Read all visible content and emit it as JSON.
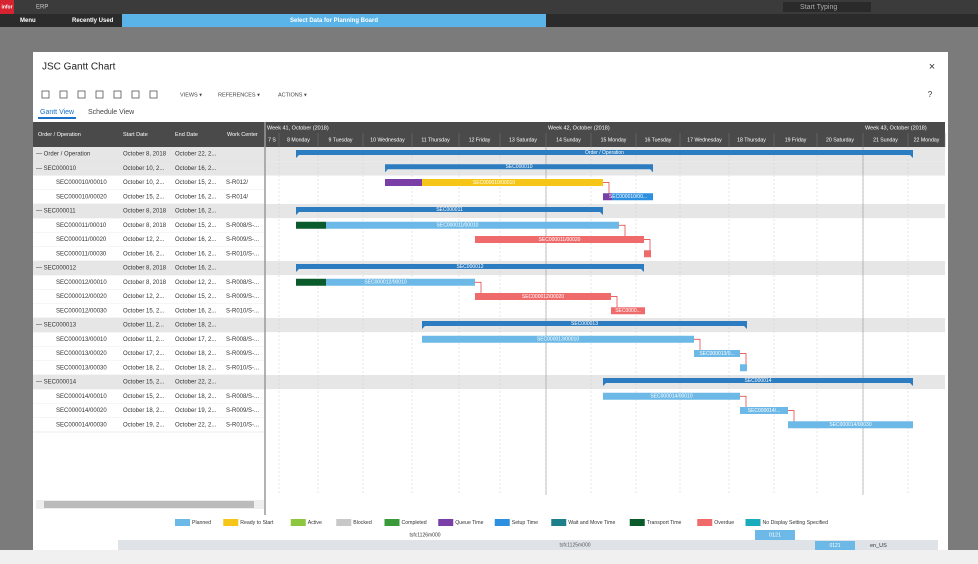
{
  "top_bar": {
    "logo": "infor",
    "app": "ERP",
    "search_placeholder": "Start Typing"
  },
  "menu_bar": {
    "menu": "Menu",
    "recently_used": "Recently Used",
    "banner": "Select Data for Planning Board"
  },
  "dialog": {
    "title": "JSC Gantt Chart",
    "close": "×",
    "help": "?",
    "toolbar": [
      "VIEWS ▾",
      "REFERENCES ▾",
      "ACTIONS ▾"
    ],
    "tabs": [
      "Gantt View",
      "Schedule View"
    ],
    "columns": [
      "Order / Operation",
      "Start Date",
      "End Date",
      "Work Center"
    ],
    "weeks": [
      "Week 41, October (2018)",
      "Week 42, October (2018)",
      "Week 43, October (2018)"
    ],
    "days": [
      "7 S",
      "8 Monday",
      "9 Tuesday",
      "10 Wednesday",
      "11 Thursday",
      "12 Friday",
      "13 Saturday",
      "14 Sunday",
      "15 Monday",
      "16 Tuesday",
      "17 Wednesday",
      "18 Thursday",
      "19 Friday",
      "20 Saturday",
      "21 Sunday",
      "22 Monday"
    ],
    "rows": [
      {
        "order": "— Order / Operation",
        "start": "October 8, 2018",
        "end": "October 22, 2...",
        "bar_label": "Order / Operation"
      },
      {
        "order": "— SEC000010",
        "start": "October 10, 2...",
        "end": "October 16, 2...",
        "bar_label": "SEC000010"
      },
      {
        "order": "SEC000010/00010",
        "start": "October 10, 2...",
        "end": "October 15, 2...",
        "work_center": "S-R012/",
        "bar_label": "SEC000010/00010"
      },
      {
        "order": "SEC000010/00020",
        "start": "October 15, 2...",
        "end": "October 16, 2...",
        "work_center": "S-R014/",
        "bar_label": "SEC000010/00..."
      },
      {
        "order": "— SEC000011",
        "start": "October 8, 2018",
        "end": "October 16, 2...",
        "bar_label": "SEC000011"
      },
      {
        "order": "SEC000011/00010",
        "start": "October 8, 2018",
        "end": "October 15, 2...",
        "work_center": "S-R008/S-...",
        "bar_label": "SEC000011/00010"
      },
      {
        "order": "SEC000011/00020",
        "start": "October 12, 2...",
        "end": "October 16, 2...",
        "work_center": "S-R009/S-...",
        "bar_label": "SEC000011/00020"
      },
      {
        "order": "SEC000011/00030",
        "start": "October 16, 2...",
        "end": "October 16, 2...",
        "work_center": "S-R010/S-..."
      },
      {
        "order": "— SEC000012",
        "start": "October 8, 2018",
        "end": "October 16, 2...",
        "bar_label": "SEC000012"
      },
      {
        "order": "SEC000012/00010",
        "start": "October 8, 2018",
        "end": "October 12, 2...",
        "work_center": "S-R008/S-...",
        "bar_label": "SEC000012/00010"
      },
      {
        "order": "SEC000012/00020",
        "start": "October 12, 2...",
        "end": "October 15, 2...",
        "work_center": "S-R009/S-...",
        "bar_label": "SEC000012/00020"
      },
      {
        "order": "SEC000012/00030",
        "start": "October 15, 2...",
        "end": "October 16, 2...",
        "work_center": "S-R010/S-...",
        "bar_label": "SEC0000..."
      },
      {
        "order": "— SEC000013",
        "start": "October 11, 2...",
        "end": "October 18, 2...",
        "bar_label": "SEC000013"
      },
      {
        "order": "SEC000013/00010",
        "start": "October 11, 2...",
        "end": "October 17, 2...",
        "work_center": "S-R008/S-...",
        "bar_label": "SEC000013/00010"
      },
      {
        "order": "SEC000013/00020",
        "start": "October 17, 2...",
        "end": "October 18, 2...",
        "work_center": "S-R009/S-...",
        "bar_label": "SEC000013/0..."
      },
      {
        "order": "SEC000013/00030",
        "start": "October 18, 2...",
        "end": "October 18, 2...",
        "work_center": "S-R010/S-..."
      },
      {
        "order": "— SEC000014",
        "start": "October 15, 2...",
        "end": "October 22, 2...",
        "bar_label": "SEC000014"
      },
      {
        "order": "SEC000014/00010",
        "start": "October 15, 2...",
        "end": "October 18, 2...",
        "work_center": "S-R008/S-...",
        "bar_label": "SEC000014/00010"
      },
      {
        "order": "SEC000014/00020",
        "start": "October 18, 2...",
        "end": "October 19, 2...",
        "work_center": "S-R009/S-...",
        "bar_label": "SEC000014/..."
      },
      {
        "order": "SEC000014/00030",
        "start": "October 19, 2...",
        "end": "October 22, 2...",
        "work_center": "S-R010/S-...",
        "bar_label": "SEC000014/00030"
      }
    ],
    "legend": [
      {
        "name": "Planned",
        "color": "#6cb8e6"
      },
      {
        "name": "Ready to Start",
        "color": "#f5c518"
      },
      {
        "name": "Active",
        "color": "#8dc63f"
      },
      {
        "name": "Blocked",
        "color": "#c8c8c8"
      },
      {
        "name": "Completed",
        "color": "#3a9a3a"
      },
      {
        "name": "Queue Time",
        "color": "#7a3fa6"
      },
      {
        "name": "Setup Time",
        "color": "#2d8fe0"
      },
      {
        "name": "Wait and Move Time",
        "color": "#1d7f8a"
      },
      {
        "name": "Transport Time",
        "color": "#0b5a2c"
      },
      {
        "name": "Overdue",
        "color": "#ef6b6b"
      },
      {
        "name": "No Display Setting Specified",
        "color": "#1aacbc"
      }
    ],
    "session": "tsfc1126m000"
  },
  "status_bar": {
    "tab": "0121",
    "session": "tsfc1125m000",
    "company": "0121",
    "language": "en_US"
  }
}
